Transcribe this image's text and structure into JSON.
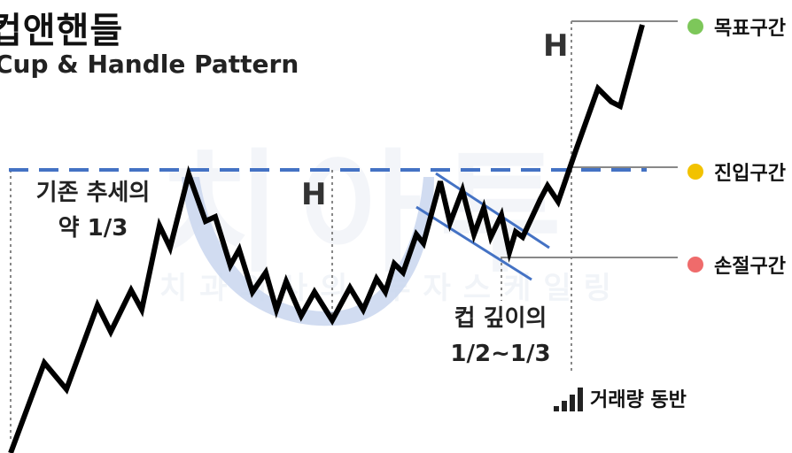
{
  "title": "컵앤핸들",
  "subtitle": "Cup & Handle Pattern",
  "annotations": {
    "prior_trend_line1": "기존 추세의",
    "prior_trend_line2": "약 1/3",
    "h_left": "H",
    "h_right": "H",
    "cup_depth_line1": "컵 깊이의",
    "cup_depth_line2": "1/2~1/3",
    "volume": "거래량 동반"
  },
  "legend": {
    "target": {
      "label": "목표구간",
      "color": "#7dc75a"
    },
    "entry": {
      "label": "진입구간",
      "color": "#f2c200"
    },
    "stop": {
      "label": "손절구간",
      "color": "#ef6b6b"
    }
  },
  "watermark": {
    "big": "치아투",
    "small": "치과의사의 투자스케일링"
  },
  "colors": {
    "price_line": "#000000",
    "resistance": "#4472c4",
    "cup_fill": "#c9d6ee",
    "guide": "#888888"
  }
}
